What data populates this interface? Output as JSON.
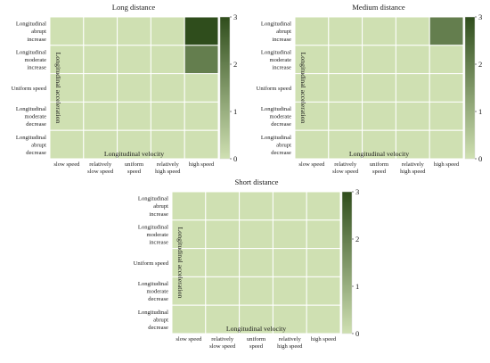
{
  "colors": {
    "low": "#cfe0b2",
    "high": "#2f4d1c",
    "grid": "#ffffff"
  },
  "chart_data": [
    {
      "type": "heatmap",
      "title": "Long distance",
      "xlabel": "Longitudinal velocity",
      "ylabel": "Longitudinal acceleration",
      "x_categories": [
        "slow speed",
        "relatively slow speed",
        "uniform speed",
        "relatively high speed",
        "high speed"
      ],
      "y_categories": [
        "Longitudinal abrupt increase",
        "Longitudinal moderate increase",
        "Uniform speed",
        "Longitudinal moderate decrease",
        "Longitudinal abrupt decrease"
      ],
      "values": [
        [
          0,
          0,
          0,
          0,
          3
        ],
        [
          0,
          0,
          0,
          0,
          2
        ],
        [
          0,
          0,
          0,
          0,
          0
        ],
        [
          0,
          0,
          0,
          0,
          0
        ],
        [
          0,
          0,
          0,
          0,
          0
        ]
      ],
      "colorbar": {
        "min": 0,
        "max": 3,
        "ticks": [
          0,
          1,
          2,
          3
        ]
      }
    },
    {
      "type": "heatmap",
      "title": "Medium distance",
      "xlabel": "Longitudinal velocity",
      "ylabel": "Longitudinal acceleration",
      "x_categories": [
        "slow speed",
        "relatively slow speed",
        "uniform speed",
        "relatively high speed",
        "high speed"
      ],
      "y_categories": [
        "Longitudinal abrupt increase",
        "Longitudinal moderate increase",
        "Uniform speed",
        "Longitudinal moderate decrease",
        "Longitudinal abrupt decrease"
      ],
      "values": [
        [
          0,
          0,
          0,
          0,
          2
        ],
        [
          0,
          0,
          0,
          0,
          0
        ],
        [
          0,
          0,
          0,
          0,
          0
        ],
        [
          0,
          0,
          0,
          0,
          0
        ],
        [
          0,
          0,
          0,
          0,
          0
        ]
      ],
      "colorbar": {
        "min": 0,
        "max": 3,
        "ticks": [
          0,
          1,
          2,
          3
        ]
      }
    },
    {
      "type": "heatmap",
      "title": "Short distance",
      "xlabel": "Longitudinal velocity",
      "ylabel": "Longitudinal acceleration",
      "x_categories": [
        "slow speed",
        "relatively slow speed",
        "uniform speed",
        "relatively high speed",
        "high speed"
      ],
      "y_categories": [
        "Longitudinal abrupt increase",
        "Longitudinal moderate increase",
        "Uniform speed",
        "Longitudinal moderate decrease",
        "Longitudinal abrupt decrease"
      ],
      "values": [
        [
          0,
          0,
          0,
          0,
          0
        ],
        [
          0,
          0,
          0,
          0,
          0
        ],
        [
          0,
          0,
          0,
          0,
          0
        ],
        [
          0,
          0,
          0,
          0,
          0
        ],
        [
          0,
          0,
          0,
          0,
          0
        ]
      ],
      "colorbar": {
        "min": 0,
        "max": 3,
        "ticks": [
          0,
          1,
          2,
          3
        ]
      }
    }
  ]
}
